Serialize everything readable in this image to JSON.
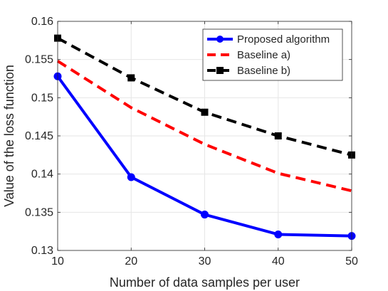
{
  "chart_data": {
    "type": "line",
    "title": "",
    "xlabel": "Number of data samples per user",
    "ylabel": "Value of the loss function",
    "xlim": [
      10,
      50
    ],
    "ylim": [
      0.13,
      0.16
    ],
    "x_ticks": [
      10,
      20,
      30,
      40,
      50
    ],
    "y_ticks": [
      0.13,
      0.135,
      0.14,
      0.145,
      0.15,
      0.155,
      0.16
    ],
    "y_tick_labels": [
      "0.13",
      "0.135",
      "0.14",
      "0.145",
      "0.15",
      "0.155",
      "0.16"
    ],
    "grid": true,
    "legend_position": "top-right",
    "series": [
      {
        "name": "Proposed algorithm",
        "color": "#0000ff",
        "line_style": "solid",
        "marker": "circle",
        "x": [
          10,
          20,
          30,
          40,
          50
        ],
        "y": [
          0.1528,
          0.1396,
          0.1347,
          0.1321,
          0.1319
        ]
      },
      {
        "name": "Baseline a)",
        "color": "#ff0000",
        "line_style": "dashed",
        "marker": "none",
        "x": [
          10,
          20,
          30,
          40,
          50
        ],
        "y": [
          0.1548,
          0.1487,
          0.1439,
          0.1401,
          0.1378
        ]
      },
      {
        "name": "Baseline b)",
        "color": "#000000",
        "line_style": "dashed",
        "marker": "square",
        "x": [
          10,
          20,
          30,
          40,
          50
        ],
        "y": [
          0.1578,
          0.1526,
          0.1481,
          0.145,
          0.1425
        ]
      }
    ]
  }
}
